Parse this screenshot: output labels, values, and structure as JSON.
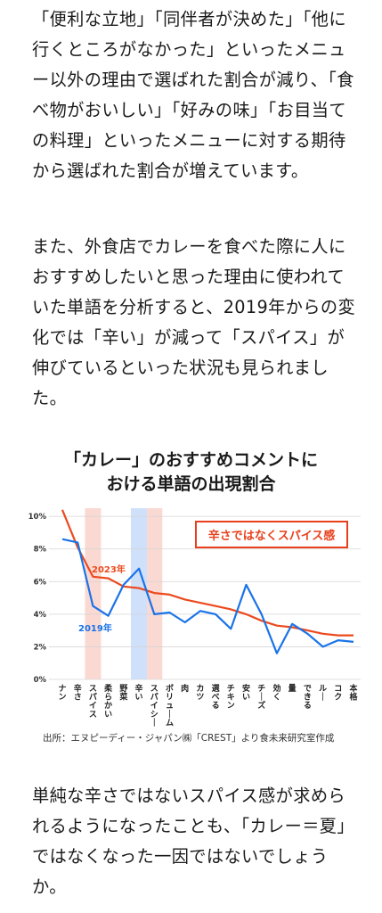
{
  "article": {
    "paragraph_1": "「便利な立地」「同伴者が決めた」「他に行くところがなかった」といったメニュー以外の理由で選ばれた割合が減り、「食べ物がおいしい」「好みの味」「お目当ての料理」といったメニューに対する期待から選ばれた割合が増えています。",
    "paragraph_2": "また、外食店でカレーを食べた際に人におすすめしたいと思った理由に使われていた単語を分析すると、2019年からの変化では「辛い」が減って「スパイス」が伸びているといった状況も見られました。",
    "paragraph_3": "単純な辛さではないスパイス感が求められるようになったことも、「カレー＝夏」ではなくなった一因ではないでしょうか。"
  },
  "chart_data": {
    "type": "line",
    "title_line1": "「カレー」のおすすめコメントに",
    "title_line2": "おける単語の出現割合",
    "categories": [
      "ナン",
      "辛さ",
      "スパイス",
      "柔らかい",
      "野菜",
      "辛い",
      "スパイシー",
      "ボリューム",
      "肉",
      "カツ",
      "選べる",
      "チキン",
      "安い",
      "チーズ",
      "効く",
      "量",
      "できる",
      "ルー",
      "コク",
      "本格"
    ],
    "y_ticks": [
      "0%",
      "2%",
      "4%",
      "6%",
      "8%",
      "10%"
    ],
    "ylim": [
      0,
      10.5
    ],
    "series": [
      {
        "name": "2023年",
        "color": "#ec4a1e",
        "values": [
          10.4,
          8.1,
          6.3,
          6.2,
          5.7,
          5.6,
          5.3,
          5.2,
          4.9,
          4.7,
          4.5,
          4.3,
          4.0,
          3.6,
          3.3,
          3.2,
          3.0,
          2.8,
          2.7,
          2.7
        ]
      },
      {
        "name": "2019年",
        "color": "#1a73e8",
        "values": [
          8.6,
          8.4,
          4.5,
          3.9,
          5.8,
          6.8,
          4.0,
          4.1,
          3.5,
          4.2,
          4.0,
          3.1,
          5.8,
          4.0,
          1.6,
          3.4,
          2.8,
          2.0,
          2.4,
          2.3
        ]
      }
    ],
    "highlight_red": [
      "スパイス",
      "スパイシー"
    ],
    "highlight_blue": [
      "辛い"
    ],
    "highlight_colors": {
      "red": "#fbd9d3",
      "blue": "#cfe0fb"
    },
    "annotation": "辛さではなくスパイス感",
    "annotation_color": "#e8401c",
    "grid": true,
    "source": "出所：エヌピーディー・ジャパン㈱「CREST」より食未来研究室作成"
  }
}
